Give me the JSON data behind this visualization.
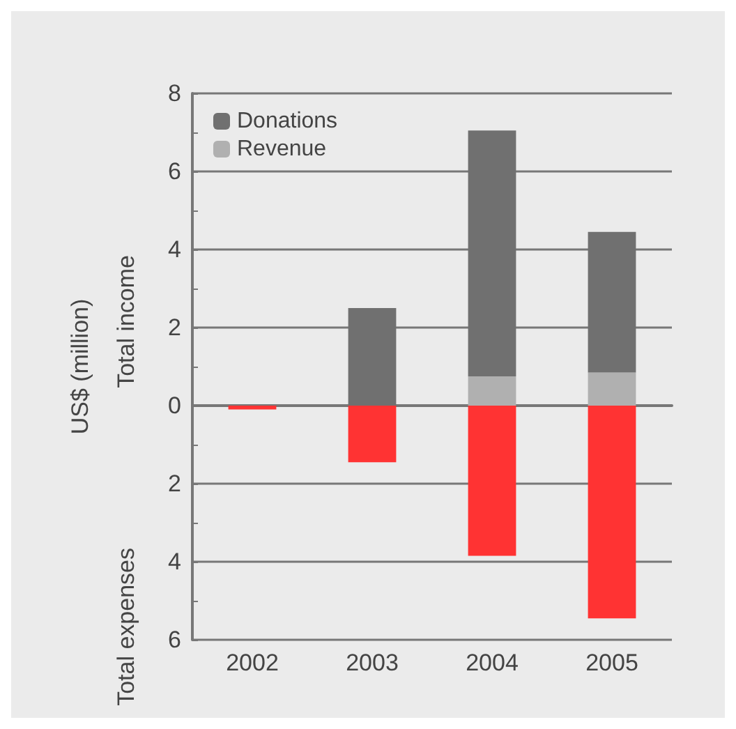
{
  "chart_data": {
    "type": "bar",
    "stacked": true,
    "ylabel": "US$ (million)",
    "annotations": [
      "Total income",
      "Total expenses"
    ],
    "categories": [
      "2002",
      "2003",
      "2004",
      "2005"
    ],
    "series": [
      {
        "name": "Revenue",
        "color": "#b0b0b0",
        "values": [
          null,
          null,
          0.75,
          0.85
        ]
      },
      {
        "name": "Donations",
        "color": "#707070",
        "values": [
          null,
          2.5,
          6.3,
          3.6
        ]
      },
      {
        "color": "#ff3333",
        "values": [
          -0.1,
          -1.45,
          -3.85,
          -5.45
        ]
      }
    ],
    "ylim": [
      -6,
      8
    ],
    "yticks": [
      {
        "value": -6,
        "label": "6"
      },
      {
        "value": -5,
        "label": null
      },
      {
        "value": -4,
        "label": "4"
      },
      {
        "value": -3,
        "label": null
      },
      {
        "value": -2,
        "label": "2"
      },
      {
        "value": -1,
        "label": null
      },
      0,
      {
        "value": 1,
        "label": null
      },
      2,
      {
        "value": 3,
        "label": null
      },
      4,
      {
        "value": 5,
        "label": null
      },
      6,
      {
        "value": 7,
        "label": null
      },
      8
    ],
    "grid": "y",
    "legend": "top left"
  }
}
